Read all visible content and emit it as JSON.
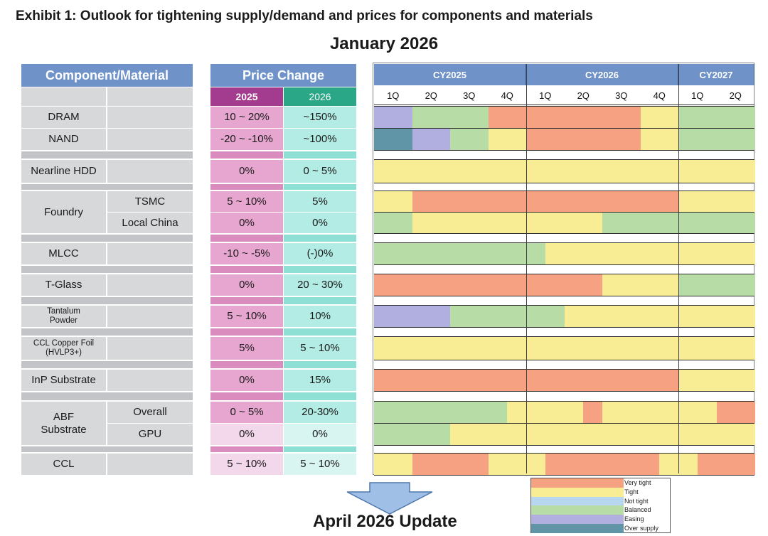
{
  "title": "Exhibit 1: Outlook for tightening supply/demand and prices for components and materials",
  "subtitle": "January 2026",
  "update_label": "April 2026 Update",
  "headers": {
    "component": "Component/Material",
    "price_change": "Price Change",
    "y2025": "2025",
    "y2026": "2026"
  },
  "chart_data": {
    "type": "table",
    "years": [
      "CY2025",
      "CY2026",
      "CY2027"
    ],
    "quarters": [
      "1Q",
      "2Q",
      "3Q",
      "4Q",
      "1Q",
      "2Q",
      "3Q",
      "4Q",
      "1Q",
      "2Q"
    ],
    "legend": [
      {
        "key": "very_tight",
        "label": "Very tight",
        "color": "#f6a182"
      },
      {
        "key": "tight",
        "label": "Tight",
        "color": "#f8ed94"
      },
      {
        "key": "not_tight",
        "label": "Not tight",
        "color": "#b7d7f0"
      },
      {
        "key": "balanced",
        "label": "Balanced",
        "color": "#b8dca6"
      },
      {
        "key": "easing",
        "label": "Easing",
        "color": "#b1aee0"
      },
      {
        "key": "over_supply",
        "label": "Over supply",
        "color": "#5f95a6"
      }
    ],
    "rows": [
      {
        "group": "DRAM",
        "item": "",
        "price_2025": "10 ~ 20%",
        "price_2026": "~150%",
        "outlook": [
          "easing",
          "balanced",
          "balanced",
          "very_tight",
          "very_tight",
          "very_tight",
          "very_tight",
          "tight",
          "balanced",
          "balanced"
        ]
      },
      {
        "group": "NAND",
        "item": "",
        "price_2025": "-20 ~ -10%",
        "price_2026": "~100%",
        "outlook": [
          "over_supply",
          "easing",
          "balanced",
          "tight",
          "very_tight",
          "very_tight",
          "very_tight",
          "tight",
          "balanced",
          "balanced"
        ]
      },
      {
        "group": "Nearline HDD",
        "item": "",
        "price_2025": "0%",
        "price_2026": "0 ~ 5%",
        "outlook": [
          "tight",
          "tight",
          "tight",
          "tight",
          "tight",
          "tight",
          "tight",
          "tight",
          "tight",
          "tight"
        ]
      },
      {
        "group": "Foundry",
        "item": "TSMC",
        "price_2025": "5 ~ 10%",
        "price_2026": "5%",
        "outlook": [
          "tight",
          "very_tight",
          "very_tight",
          "very_tight",
          "very_tight",
          "very_tight",
          "very_tight",
          "very_tight",
          "tight",
          "tight"
        ]
      },
      {
        "group": "Foundry",
        "item": "Local China",
        "price_2025": "0%",
        "price_2026": "0%",
        "outlook": [
          "balanced",
          "tight",
          "tight",
          "tight",
          "tight",
          "tight",
          "balanced",
          "balanced",
          "balanced",
          "balanced"
        ]
      },
      {
        "group": "MLCC",
        "item": "",
        "price_2025": "-10 ~ -5%",
        "price_2026": "(-)0%",
        "outlook": [
          "balanced",
          "balanced",
          "balanced",
          "balanced",
          "balanced|tight",
          "tight",
          "tight",
          "tight",
          "tight",
          "tight"
        ]
      },
      {
        "group": "T-Glass",
        "item": "",
        "price_2025": "0%",
        "price_2026": "20 ~ 30%",
        "outlook": [
          "very_tight",
          "very_tight",
          "very_tight",
          "very_tight",
          "very_tight",
          "very_tight",
          "tight",
          "tight",
          "balanced",
          "balanced"
        ]
      },
      {
        "group": "Tantalum Powder",
        "item": "",
        "price_2025": "5 ~ 10%",
        "price_2026": "10%",
        "outlook": [
          "easing",
          "easing",
          "balanced",
          "balanced",
          "balanced",
          "tight",
          "tight",
          "tight",
          "tight",
          "tight"
        ]
      },
      {
        "group": "CCL Copper Foil (HVLP3+)",
        "item": "",
        "price_2025": "5%",
        "price_2026": "5 ~ 10%",
        "outlook": [
          "tight",
          "tight",
          "tight",
          "tight",
          "tight",
          "tight",
          "tight",
          "tight",
          "tight",
          "tight"
        ]
      },
      {
        "group": "InP Substrate",
        "item": "",
        "price_2025": "0%",
        "price_2026": "15%",
        "outlook": [
          "very_tight",
          "very_tight",
          "very_tight",
          "very_tight",
          "very_tight",
          "very_tight",
          "very_tight",
          "very_tight",
          "tight",
          "tight"
        ]
      },
      {
        "group": "ABF Substrate",
        "item": "Overall",
        "price_2025": "0 ~ 5%",
        "price_2026": "20-30%",
        "outlook": [
          "balanced",
          "balanced",
          "balanced",
          "balanced|tight",
          "tight",
          "tight|very_tight",
          "tight",
          "tight",
          "tight",
          "very_tight"
        ]
      },
      {
        "group": "ABF Substrate",
        "item": "GPU",
        "price_2025": "0%",
        "price_2026": "0%",
        "outlook": [
          "balanced",
          "balanced",
          "tight",
          "tight",
          "tight",
          "tight",
          "tight",
          "tight",
          "tight",
          "tight"
        ]
      },
      {
        "group": "CCL",
        "item": "",
        "price_2025": "5 ~ 10%",
        "price_2026": "5 ~ 10%",
        "outlook": [
          "tight",
          "very_tight",
          "very_tight",
          "tight",
          "tight|very_tight",
          "very_tight",
          "very_tight",
          "very_tight|tight",
          "tight|very_tight",
          "very_tight"
        ]
      }
    ]
  }
}
